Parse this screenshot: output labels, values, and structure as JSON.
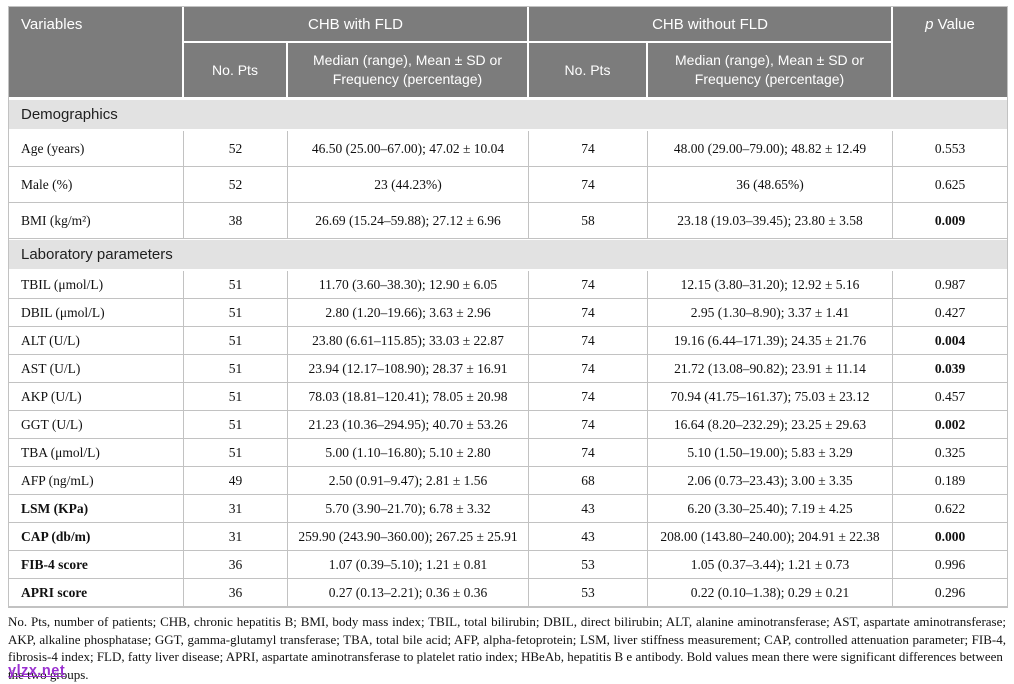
{
  "colors": {
    "header_bg": "#7c7c7c",
    "section_bg": "#e2e2e2",
    "border": "#c2c2c2",
    "watermark": "#9a2fd0"
  },
  "table": {
    "header": {
      "variables": "Variables",
      "group_with": "CHB with FLD",
      "group_without": "CHB without FLD",
      "p_italic": "p",
      "p_rest": " Value",
      "no_pts_with": "No. Pts",
      "no_pts_without": "No. Pts",
      "stat_label_with": "Median (range), Mean ± SD or Frequency (percentage)",
      "stat_label_without": "Median (range), Mean ± SD or Frequency (percentage)"
    },
    "sections": [
      {
        "title": "Demographics",
        "rows": [
          {
            "label": "Age (years)",
            "label_bold": false,
            "n1": "52",
            "v1": "46.50 (25.00–67.00); 47.02 ± 10.04",
            "n2": "74",
            "v2": "48.00 (29.00–79.00); 48.82 ± 12.49",
            "p": "0.553",
            "p_bold": false
          },
          {
            "label": "Male (%)",
            "label_bold": false,
            "n1": "52",
            "v1": "23 (44.23%)",
            "n2": "74",
            "v2": "36 (48.65%)",
            "p": "0.625",
            "p_bold": false
          },
          {
            "label": "BMI (kg/m²)",
            "label_bold": false,
            "n1": "38",
            "v1": "26.69 (15.24–59.88); 27.12 ± 6.96",
            "n2": "58",
            "v2": "23.18 (19.03–39.45); 23.80 ± 3.58",
            "p": "0.009",
            "p_bold": true
          }
        ]
      },
      {
        "title": "Laboratory parameters",
        "rows": [
          {
            "label": "TBIL (μmol/L)",
            "label_bold": false,
            "n1": "51",
            "v1": "11.70 (3.60–38.30); 12.90 ± 6.05",
            "n2": "74",
            "v2": "12.15 (3.80–31.20); 12.92 ± 5.16",
            "p": "0.987",
            "p_bold": false
          },
          {
            "label": "DBIL (μmol/L)",
            "label_bold": false,
            "n1": "51",
            "v1": "2.80 (1.20–19.66); 3.63 ± 2.96",
            "n2": "74",
            "v2": "2.95 (1.30–8.90); 3.37 ± 1.41",
            "p": "0.427",
            "p_bold": false
          },
          {
            "label": "ALT (U/L)",
            "label_bold": false,
            "n1": "51",
            "v1": "23.80 (6.61–115.85); 33.03 ± 22.87",
            "n2": "74",
            "v2": "19.16 (6.44–171.39); 24.35 ± 21.76",
            "p": "0.004",
            "p_bold": true
          },
          {
            "label": "AST (U/L)",
            "label_bold": false,
            "n1": "51",
            "v1": "23.94 (12.17–108.90); 28.37 ± 16.91",
            "n2": "74",
            "v2": "21.72 (13.08–90.82); 23.91 ± 11.14",
            "p": "0.039",
            "p_bold": true
          },
          {
            "label": "AKP (U/L)",
            "label_bold": false,
            "n1": "51",
            "v1": "78.03 (18.81–120.41); 78.05 ± 20.98",
            "n2": "74",
            "v2": "70.94 (41.75–161.37); 75.03 ± 23.12",
            "p": "0.457",
            "p_bold": false
          },
          {
            "label": "GGT (U/L)",
            "label_bold": false,
            "n1": "51",
            "v1": "21.23 (10.36–294.95); 40.70 ± 53.26",
            "n2": "74",
            "v2": "16.64 (8.20–232.29); 23.25 ± 29.63",
            "p": "0.002",
            "p_bold": true
          },
          {
            "label": "TBA (μmol/L)",
            "label_bold": false,
            "n1": "51",
            "v1": "5.00 (1.10–16.80); 5.10 ± 2.80",
            "n2": "74",
            "v2": "5.10 (1.50–19.00); 5.83 ± 3.29",
            "p": "0.325",
            "p_bold": false
          },
          {
            "label": "AFP (ng/mL)",
            "label_bold": false,
            "n1": "49",
            "v1": "2.50 (0.91–9.47); 2.81 ± 1.56",
            "n2": "68",
            "v2": "2.06 (0.73–23.43); 3.00 ± 3.35",
            "p": "0.189",
            "p_bold": false
          },
          {
            "label": "LSM (KPa)",
            "label_bold": true,
            "n1": "31",
            "v1": "5.70 (3.90–21.70); 6.78 ± 3.32",
            "n2": "43",
            "v2": "6.20 (3.30–25.40); 7.19 ± 4.25",
            "p": "0.622",
            "p_bold": false
          },
          {
            "label": "CAP (db/m)",
            "label_bold": true,
            "n1": "31",
            "v1": "259.90 (243.90–360.00); 267.25 ± 25.91",
            "n2": "43",
            "v2": "208.00 (143.80–240.00); 204.91 ± 22.38",
            "p": "0.000",
            "p_bold": true
          },
          {
            "label": "FIB-4 score",
            "label_bold": true,
            "n1": "36",
            "v1": "1.07 (0.39–5.10); 1.21 ± 0.81",
            "n2": "53",
            "v2": "1.05 (0.37–3.44); 1.21 ± 0.73",
            "p": "0.996",
            "p_bold": false
          },
          {
            "label": "APRI score",
            "label_bold": true,
            "n1": "36",
            "v1": "0.27 (0.13–2.21); 0.36 ± 0.36",
            "n2": "53",
            "v2": "0.22 (0.10–1.38); 0.29 ± 0.21",
            "p": "0.296",
            "p_bold": false
          }
        ]
      }
    ]
  },
  "footnote": {
    "main": "No. Pts, number of patients; CHB, chronic hepatitis B; BMI, body mass index; TBIL, total bilirubin; DBIL, direct bilirubin; ALT, alanine aminotransferase; AST, aspartate aminotransferase; AKP, alkaline phosphatase; GGT, gamma-glutamyl transferase; TBA, total bile acid; AFP, alpha-fetoprotein; LSM, liver stiffness measurement; CAP, controlled attenuation parameter; FIB-4, fibrosis-4 index; FLD, fatty liver disease; APRI, aspartate aminotransferase to platelet ratio index; HBeAb, hepatitis B e antibody. Bold values mean there were significant differences between",
    "last_line": "the two groups.",
    "watermark": "ylzx.net"
  }
}
